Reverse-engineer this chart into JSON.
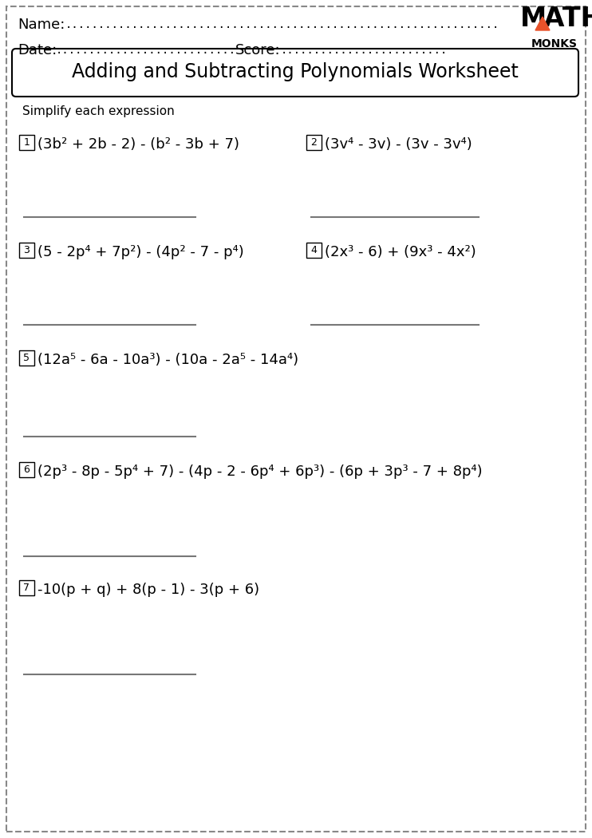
{
  "page_bg": "#ffffff",
  "border_color": "#888888",
  "title": "Adding and Subtracting Polynomials Worksheet",
  "subtitle": "Simplify each expression",
  "name_label": "Name:",
  "date_label": "Date:",
  "score_label": "Score:",
  "logo_triangle_color": "#e8522a",
  "prob1_left": "(3b² + 2b - 2) - (b² - 3b + 7)",
  "prob2_right": "(3v⁴ - 3v) - (3v - 3v⁴)",
  "prob3_left": "(5 - 2p⁴ + 7p²) - (4p² - 7 - p⁴)",
  "prob4_right": "(2x³ - 6) + (9x³ - 4x²)",
  "prob5": "(12a⁵ - 6a - 10a³) - (10a - 2a⁵ - 14a⁴)",
  "prob6": "(2p³ - 8p - 5p⁴ + 7) - (4p - 2 - 6p⁴ + 6p³) - (6p + 3p³ - 7 + 8p⁴)",
  "prob7": "-10(p + q) + 8(p - 1) - 3(p + 6)"
}
